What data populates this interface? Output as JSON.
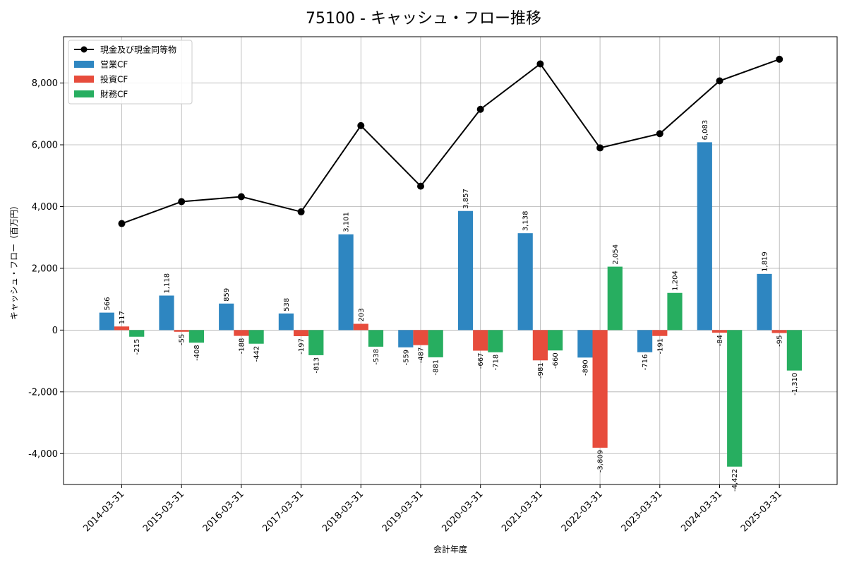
{
  "chart_data": {
    "type": "bar",
    "title": "75100 - キャッシュ・フロー推移",
    "xlabel": "会計年度",
    "ylabel": "キャッシュ・フロー（百万円）",
    "ylim": [
      -5000,
      9500
    ],
    "yticks": [
      -4000,
      -2000,
      0,
      2000,
      4000,
      6000,
      8000
    ],
    "ytick_labels": [
      "-4,000",
      "-2,000",
      "0",
      "2,000",
      "4,000",
      "6,000",
      "8,000"
    ],
    "grid": true,
    "legend_position": "top-left",
    "categories": [
      "2014-03-31",
      "2015-03-31",
      "2016-03-31",
      "2017-03-31",
      "2018-03-31",
      "2019-03-31",
      "2020-03-31",
      "2021-03-31",
      "2022-03-31",
      "2023-03-31",
      "2024-03-31",
      "2025-03-31"
    ],
    "series": [
      {
        "name": "営業CF",
        "type": "bar",
        "color": "#2e86c1",
        "values": [
          566,
          1118,
          859,
          538,
          3101,
          -559,
          3857,
          3138,
          -890,
          -716,
          6083,
          1819
        ],
        "labels": [
          "566",
          "1,118",
          "859",
          "538",
          "3,101",
          "-559",
          "3,857",
          "3,138",
          "-890",
          "-716",
          "6,083",
          "1,819"
        ]
      },
      {
        "name": "投資CF",
        "type": "bar",
        "color": "#e74c3c",
        "values": [
          117,
          -55,
          -188,
          -197,
          203,
          -487,
          -667,
          -981,
          -3809,
          -191,
          -84,
          -95
        ],
        "labels": [
          "117",
          "-55",
          "-188",
          "-197",
          "203",
          "-487",
          "-667",
          "-981",
          "-3,809",
          "-191",
          "-84",
          "-95"
        ]
      },
      {
        "name": "財務CF",
        "type": "bar",
        "color": "#27ae60",
        "values": [
          -215,
          -408,
          -442,
          -813,
          -538,
          -881,
          -718,
          -660,
          2054,
          1204,
          -4422,
          -1310
        ],
        "labels": [
          "-215",
          "-408",
          "-442",
          "-813",
          "-538",
          "-881",
          "-718",
          "-660",
          "2,054",
          "1,204",
          "-4,422",
          "-1,310"
        ]
      },
      {
        "name": "現金及び現金同等物",
        "type": "line",
        "color": "#000000",
        "values": [
          3450,
          4160,
          4320,
          3830,
          6620,
          4660,
          7150,
          8620,
          5900,
          6360,
          8070,
          8770
        ]
      }
    ]
  }
}
